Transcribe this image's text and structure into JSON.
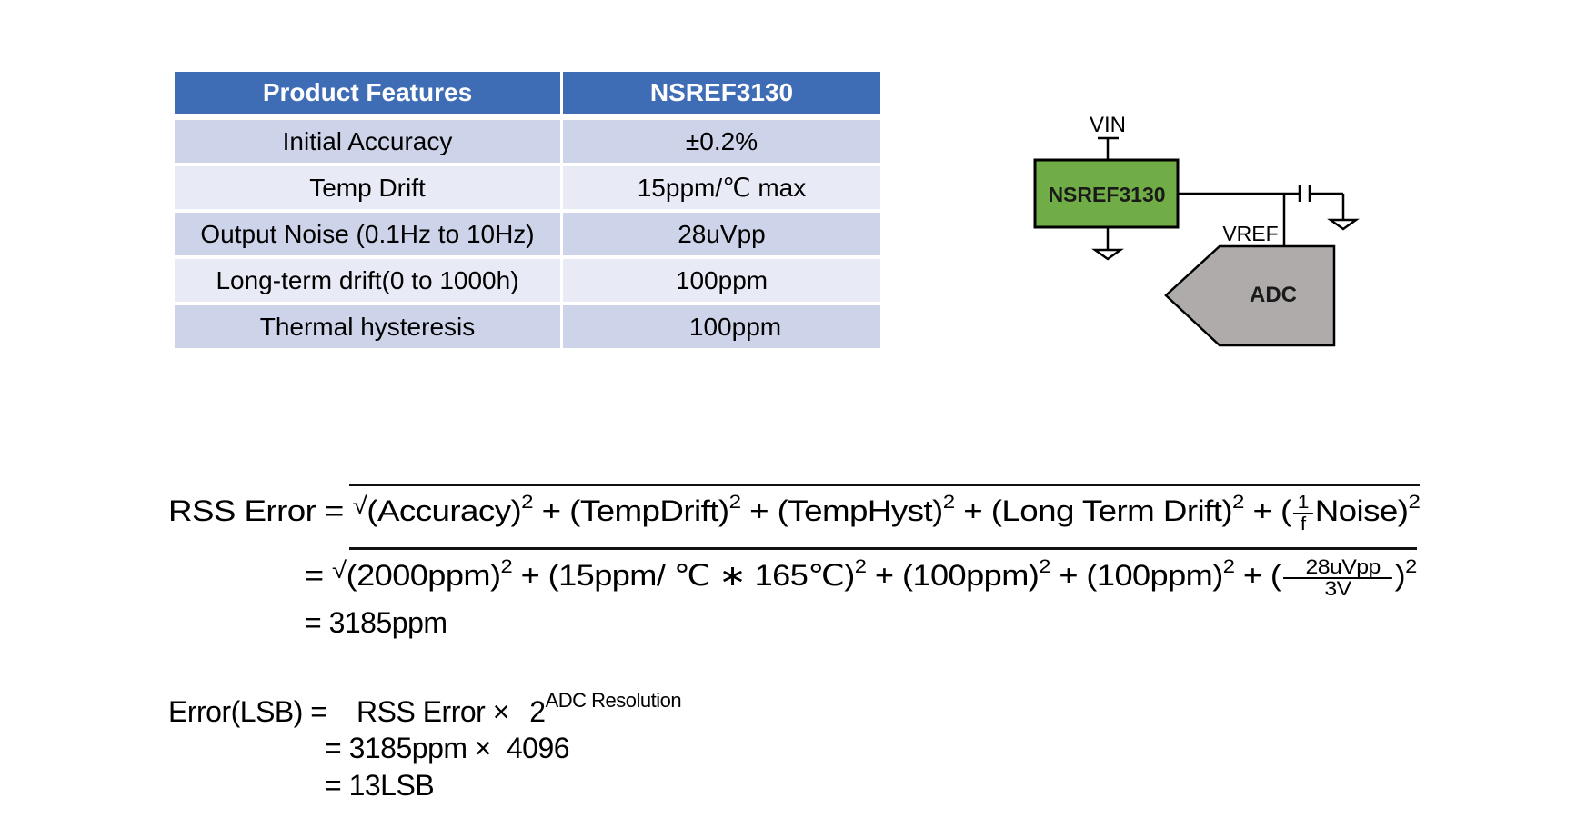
{
  "table": {
    "headers": [
      "Product Features",
      "NSREF3130"
    ],
    "rows": [
      [
        "Initial Accuracy",
        "±0.2%"
      ],
      [
        "Temp Drift",
        "15ppm/℃ max"
      ],
      [
        "Output Noise (0.1Hz to 10Hz)",
        "28uVpp"
      ],
      [
        "Long-term drift(0 to 1000h)",
        "100ppm"
      ],
      [
        "Thermal hysteresis",
        "100ppm"
      ]
    ],
    "colors": {
      "header": "#3f6db5",
      "row_dark": "#cdd3e8",
      "row_light": "#e8ebf5"
    }
  },
  "diagram": {
    "vin_label": "VIN",
    "chip_label": "NSREF3130",
    "vref_label": "VREF",
    "adc_label": "ADC",
    "colors": {
      "chip": "#70ad47",
      "adc": "#afabab"
    }
  },
  "formulas": {
    "rss_lhs": "RSS Error",
    "eq": "=",
    "sqrt": "√",
    "sq": "2",
    "plus": "+",
    "terms1": [
      "(Accuracy)",
      "(TempDrift)",
      "(TempHyst)",
      "(Long Term Drift)"
    ],
    "noise_open": "(",
    "one": "1",
    "f": "f",
    "noise_close": "Noise)",
    "terms2": [
      "(2000ppm)",
      "(15ppm/ ℃ ∗ 165℃)",
      "(100ppm)",
      "(100ppm)"
    ],
    "frac_num": "28uVpp",
    "frac_den": "3V",
    "frac_close": ")",
    "result": "= 3185ppm",
    "lsb_lhs": "Error(LSB) =",
    "lsb_line1": "RSS Error ×",
    "two": "2",
    "exp": "ADC Resolution",
    "lsb_line2": "= 3185ppm ×  4096",
    "lsb_line3": "= 13LSB"
  }
}
